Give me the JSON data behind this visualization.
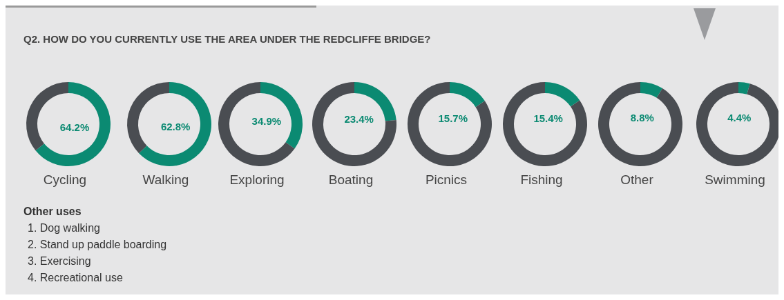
{
  "chart_data": [
    {
      "type": "donut",
      "title": "Q2. HOW DO YOU CURRENTLY USE THE AREA UNDER THE REDCLIFFE BRIDGE?",
      "xlabel": "Cycling",
      "categories": [
        null,
        null
      ],
      "values": [
        64.2,
        35.8
      ],
      "colors": [
        "#0b8a72",
        "#4a4d52"
      ],
      "value_labels": [
        "64.2%",
        null
      ]
    },
    {
      "type": "donut",
      "xlabel": "Walking",
      "categories": [
        null,
        null
      ],
      "values": [
        62.8,
        37.2
      ],
      "colors": [
        "#0b8a72",
        "#4a4d52"
      ],
      "value_labels": [
        "62.8%",
        null
      ]
    },
    {
      "type": "donut",
      "xlabel": "Exploring",
      "categories": [
        null,
        null
      ],
      "values": [
        34.9,
        65.1
      ],
      "colors": [
        "#0b8a72",
        "#4a4d52"
      ],
      "value_labels": [
        "34.9%",
        null
      ]
    },
    {
      "type": "donut",
      "xlabel": "Boating",
      "categories": [
        null,
        null
      ],
      "values": [
        23.4,
        76.6
      ],
      "colors": [
        "#0b8a72",
        "#4a4d52"
      ],
      "value_labels": [
        "23.4%",
        null
      ]
    },
    {
      "type": "donut",
      "xlabel": "Picnics",
      "categories": [
        null,
        null
      ],
      "values": [
        15.7,
        84.3
      ],
      "colors": [
        "#0b8a72",
        "#4a4d52"
      ],
      "value_labels": [
        "15.7%",
        null
      ]
    },
    {
      "type": "donut",
      "xlabel": "Fishing",
      "categories": [
        null,
        null
      ],
      "values": [
        15.4,
        84.6
      ],
      "colors": [
        "#0b8a72",
        "#4a4d52"
      ],
      "value_labels": [
        "15.4%",
        null
      ]
    },
    {
      "type": "donut",
      "xlabel": "Other",
      "categories": [
        null,
        null
      ],
      "values": [
        8.8,
        91.2
      ],
      "colors": [
        "#0b8a72",
        "#4a4d52"
      ],
      "value_labels": [
        "8.8%",
        null
      ]
    },
    {
      "type": "donut",
      "xlabel": "Swimming",
      "categories": [
        null,
        null
      ],
      "values": [
        4.4,
        95.6
      ],
      "colors": [
        "#0b8a72",
        "#4a4d52"
      ],
      "value_labels": [
        "4.4%",
        null
      ]
    },
    {
      "type": "other",
      "title": "Other uses",
      "annotations": [
        "1. Dog walking",
        "2. Stand up paddle boarding",
        "3. Exercising",
        "4. Recreational use"
      ]
    }
  ]
}
